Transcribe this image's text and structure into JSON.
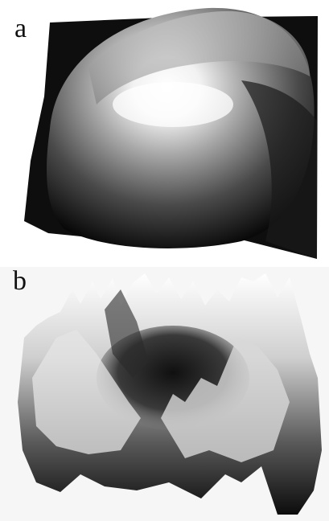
{
  "panels": [
    {
      "label": "a"
    },
    {
      "label": "b"
    }
  ]
}
